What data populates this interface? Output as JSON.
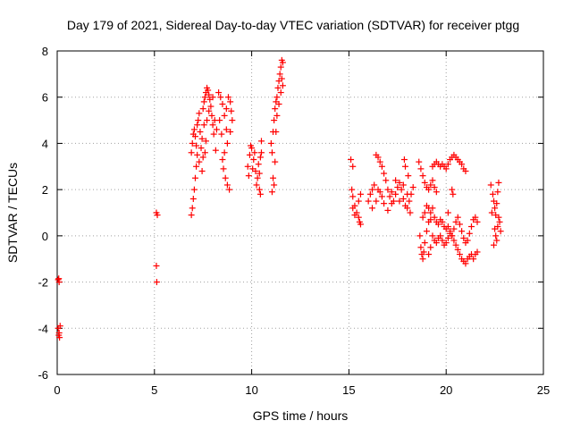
{
  "chart_data": {
    "type": "scatter",
    "title": "Day 179 of 2021, Sidereal Day-to-day VTEC variation (SDTVAR) for receiver ptgg",
    "xlabel": "GPS time / hours",
    "ylabel": "SDTVAR / TECUs",
    "xlim": [
      0,
      25
    ],
    "ylim": [
      -6,
      8
    ],
    "xticks": [
      "0",
      "5",
      "10",
      "15",
      "20",
      "25"
    ],
    "yticks": [
      "-6",
      "-4",
      "-2",
      "0",
      "2",
      "4",
      "6",
      "8"
    ],
    "grid": true,
    "marker": "+",
    "marker_color": "#ff0000",
    "series": [
      {
        "name": "SDTVAR",
        "points": [
          [
            0.05,
            -1.9
          ],
          [
            0.1,
            -2.0
          ],
          [
            0.08,
            -1.85
          ],
          [
            0.05,
            -4.0
          ],
          [
            0.1,
            -4.2
          ],
          [
            0.12,
            -4.4
          ],
          [
            0.08,
            -4.3
          ],
          [
            0.15,
            -3.9
          ],
          [
            5.1,
            1.0
          ],
          [
            5.15,
            0.9
          ],
          [
            5.1,
            -1.3
          ],
          [
            5.12,
            -2.0
          ],
          [
            6.9,
            0.9
          ],
          [
            6.95,
            1.2
          ],
          [
            7.0,
            1.6
          ],
          [
            7.05,
            2.0
          ],
          [
            7.1,
            2.5
          ],
          [
            7.15,
            3.0
          ],
          [
            7.2,
            3.5
          ],
          [
            6.9,
            3.6
          ],
          [
            6.95,
            4.0
          ],
          [
            7.0,
            4.4
          ],
          [
            7.05,
            4.6
          ],
          [
            7.1,
            4.3
          ],
          [
            7.15,
            3.9
          ],
          [
            7.2,
            4.8
          ],
          [
            7.25,
            5.0
          ],
          [
            7.3,
            5.3
          ],
          [
            7.35,
            4.5
          ],
          [
            7.3,
            3.2
          ],
          [
            7.4,
            3.8
          ],
          [
            7.45,
            4.2
          ],
          [
            7.5,
            5.5
          ],
          [
            7.55,
            5.8
          ],
          [
            7.6,
            6.0
          ],
          [
            7.65,
            6.2
          ],
          [
            7.7,
            6.4
          ],
          [
            7.75,
            6.3
          ],
          [
            7.8,
            6.1
          ],
          [
            7.85,
            5.9
          ],
          [
            7.9,
            5.6
          ],
          [
            7.95,
            5.2
          ],
          [
            8.0,
            4.8
          ],
          [
            8.05,
            4.4
          ],
          [
            7.55,
            4.8
          ],
          [
            7.6,
            3.6
          ],
          [
            7.65,
            4.1
          ],
          [
            7.7,
            5.0
          ],
          [
            7.8,
            5.4
          ],
          [
            8.0,
            6.0
          ],
          [
            8.1,
            5.0
          ],
          [
            8.15,
            3.7
          ],
          [
            8.2,
            4.6
          ],
          [
            7.5,
            3.4
          ],
          [
            7.45,
            2.8
          ],
          [
            8.3,
            6.2
          ],
          [
            8.4,
            6.0
          ],
          [
            8.5,
            5.7
          ],
          [
            8.6,
            5.2
          ],
          [
            8.7,
            4.6
          ],
          [
            8.75,
            4.0
          ],
          [
            8.6,
            3.6
          ],
          [
            8.5,
            3.3
          ],
          [
            8.55,
            2.9
          ],
          [
            8.65,
            2.5
          ],
          [
            8.75,
            2.2
          ],
          [
            8.85,
            2.0
          ],
          [
            8.9,
            5.8
          ],
          [
            8.95,
            5.4
          ],
          [
            9.0,
            5.0
          ],
          [
            8.8,
            6.0
          ],
          [
            8.45,
            4.4
          ],
          [
            8.35,
            5.0
          ],
          [
            8.7,
            5.5
          ],
          [
            8.9,
            4.5
          ],
          [
            9.8,
            3.0
          ],
          [
            9.9,
            3.5
          ],
          [
            10.0,
            3.8
          ],
          [
            10.1,
            3.3
          ],
          [
            10.2,
            2.8
          ],
          [
            10.3,
            2.5
          ],
          [
            10.4,
            2.0
          ],
          [
            10.45,
            1.8
          ],
          [
            10.5,
            3.6
          ],
          [
            10.5,
            4.1
          ],
          [
            9.85,
            2.6
          ],
          [
            9.95,
            3.9
          ],
          [
            10.05,
            2.9
          ],
          [
            10.15,
            3.6
          ],
          [
            10.25,
            2.2
          ],
          [
            10.35,
            3.1
          ],
          [
            10.4,
            2.7
          ],
          [
            10.45,
            3.4
          ],
          [
            11.0,
            4.0
          ],
          [
            11.05,
            3.6
          ],
          [
            11.1,
            4.5
          ],
          [
            11.15,
            5.0
          ],
          [
            11.2,
            5.5
          ],
          [
            11.25,
            5.8
          ],
          [
            11.3,
            6.0
          ],
          [
            11.35,
            6.4
          ],
          [
            11.4,
            6.7
          ],
          [
            11.45,
            7.0
          ],
          [
            11.5,
            7.3
          ],
          [
            11.55,
            7.6
          ],
          [
            11.6,
            7.5
          ],
          [
            11.1,
            2.5
          ],
          [
            11.15,
            2.2
          ],
          [
            11.2,
            3.2
          ],
          [
            11.05,
            1.9
          ],
          [
            11.25,
            4.5
          ],
          [
            11.3,
            5.2
          ],
          [
            11.4,
            5.7
          ],
          [
            11.5,
            6.2
          ],
          [
            11.55,
            6.8
          ],
          [
            11.6,
            6.5
          ],
          [
            15.1,
            3.3
          ],
          [
            15.2,
            3.0
          ],
          [
            15.15,
            2.0
          ],
          [
            15.2,
            1.7
          ],
          [
            15.3,
            1.3
          ],
          [
            15.4,
            1.0
          ],
          [
            15.5,
            0.8
          ],
          [
            15.55,
            0.6
          ],
          [
            15.6,
            0.5
          ],
          [
            15.5,
            1.5
          ],
          [
            15.6,
            1.8
          ],
          [
            15.2,
            1.2
          ],
          [
            15.3,
            0.9
          ],
          [
            16.0,
            1.5
          ],
          [
            16.1,
            1.8
          ],
          [
            16.2,
            2.0
          ],
          [
            16.3,
            2.2
          ],
          [
            16.4,
            3.5
          ],
          [
            16.5,
            3.4
          ],
          [
            16.6,
            3.2
          ],
          [
            16.7,
            3.0
          ],
          [
            16.8,
            2.7
          ],
          [
            16.9,
            2.4
          ],
          [
            17.0,
            2.0
          ],
          [
            17.1,
            1.7
          ],
          [
            17.2,
            1.4
          ],
          [
            17.3,
            1.5
          ],
          [
            17.4,
            1.8
          ],
          [
            17.5,
            2.1
          ],
          [
            17.6,
            2.3
          ],
          [
            17.7,
            2.0
          ],
          [
            17.8,
            1.6
          ],
          [
            17.9,
            1.3
          ],
          [
            18.0,
            1.2
          ],
          [
            18.1,
            1.5
          ],
          [
            18.2,
            1.8
          ],
          [
            18.3,
            2.1
          ],
          [
            16.2,
            1.2
          ],
          [
            16.4,
            1.5
          ],
          [
            16.6,
            1.9
          ],
          [
            16.8,
            1.4
          ],
          [
            17.0,
            1.1
          ],
          [
            17.2,
            1.9
          ],
          [
            17.4,
            2.4
          ],
          [
            17.6,
            1.5
          ],
          [
            17.8,
            2.2
          ],
          [
            18.0,
            1.8
          ],
          [
            17.9,
            3.0
          ],
          [
            17.85,
            3.3
          ],
          [
            18.05,
            2.6
          ],
          [
            18.15,
            1.0
          ],
          [
            16.7,
            1.7
          ],
          [
            16.5,
            2.0
          ],
          [
            18.6,
            3.2
          ],
          [
            18.7,
            2.9
          ],
          [
            18.8,
            2.6
          ],
          [
            18.9,
            2.3
          ],
          [
            19.0,
            2.1
          ],
          [
            19.1,
            2.0
          ],
          [
            19.2,
            2.2
          ],
          [
            19.3,
            2.4
          ],
          [
            19.4,
            2.1
          ],
          [
            19.5,
            1.9
          ],
          [
            18.65,
            0.0
          ],
          [
            18.7,
            -0.5
          ],
          [
            18.75,
            -0.8
          ],
          [
            18.8,
            -1.0
          ],
          [
            18.85,
            -0.7
          ],
          [
            18.9,
            -0.3
          ],
          [
            19.0,
            0.2
          ],
          [
            19.1,
            0.6
          ],
          [
            19.2,
            1.0
          ],
          [
            19.3,
            1.2
          ],
          [
            18.8,
            0.8
          ],
          [
            18.9,
            1.0
          ],
          [
            19.0,
            1.3
          ],
          [
            19.1,
            1.2
          ],
          [
            19.2,
            0.7
          ],
          [
            19.3,
            3.0
          ],
          [
            19.4,
            3.1
          ],
          [
            19.5,
            3.2
          ],
          [
            19.6,
            3.1
          ],
          [
            19.7,
            3.0
          ],
          [
            19.8,
            3.1
          ],
          [
            19.9,
            3.0
          ],
          [
            20.0,
            2.9
          ],
          [
            20.1,
            3.1
          ],
          [
            20.2,
            3.3
          ],
          [
            20.3,
            3.4
          ],
          [
            20.4,
            3.5
          ],
          [
            20.5,
            3.4
          ],
          [
            20.6,
            3.3
          ],
          [
            20.7,
            3.2
          ],
          [
            20.8,
            3.1
          ],
          [
            20.9,
            2.9
          ],
          [
            21.0,
            2.8
          ],
          [
            19.4,
            0.8
          ],
          [
            19.5,
            0.6
          ],
          [
            19.6,
            0.5
          ],
          [
            19.7,
            0.7
          ],
          [
            19.8,
            0.6
          ],
          [
            19.9,
            0.4
          ],
          [
            20.0,
            0.3
          ],
          [
            20.1,
            0.4
          ],
          [
            20.2,
            0.2
          ],
          [
            20.3,
            0.0
          ],
          [
            20.4,
            -0.2
          ],
          [
            20.5,
            -0.4
          ],
          [
            20.6,
            -0.6
          ],
          [
            20.7,
            -0.8
          ],
          [
            20.8,
            -1.0
          ],
          [
            20.9,
            -1.1
          ],
          [
            21.0,
            -1.2
          ],
          [
            21.1,
            -1.0
          ],
          [
            21.2,
            -0.9
          ],
          [
            21.3,
            -0.8
          ],
          [
            21.4,
            -1.0
          ],
          [
            21.5,
            -0.8
          ],
          [
            21.6,
            -0.7
          ],
          [
            19.3,
            0.0
          ],
          [
            19.4,
            -0.2
          ],
          [
            19.5,
            -0.3
          ],
          [
            19.6,
            -0.1
          ],
          [
            19.7,
            0.0
          ],
          [
            19.8,
            -0.2
          ],
          [
            19.9,
            -0.4
          ],
          [
            20.0,
            -0.3
          ],
          [
            20.1,
            -0.1
          ],
          [
            20.2,
            0.1
          ],
          [
            20.3,
            0.0
          ],
          [
            20.4,
            0.3
          ],
          [
            20.5,
            0.6
          ],
          [
            20.6,
            0.8
          ],
          [
            20.7,
            0.5
          ],
          [
            20.8,
            0.2
          ],
          [
            20.9,
            -0.1
          ],
          [
            21.0,
            -0.3
          ],
          [
            21.1,
            -0.2
          ],
          [
            21.2,
            0.1
          ],
          [
            21.3,
            0.4
          ],
          [
            21.4,
            0.7
          ],
          [
            21.5,
            0.8
          ],
          [
            21.6,
            0.6
          ],
          [
            20.3,
            2.0
          ],
          [
            20.35,
            1.8
          ],
          [
            20.1,
            1.0
          ],
          [
            19.2,
            -0.5
          ],
          [
            19.1,
            -0.8
          ],
          [
            22.3,
            2.2
          ],
          [
            22.4,
            1.8
          ],
          [
            22.45,
            1.5
          ],
          [
            22.5,
            1.2
          ],
          [
            22.55,
            0.9
          ],
          [
            22.6,
            1.4
          ],
          [
            22.65,
            1.9
          ],
          [
            22.7,
            2.3
          ],
          [
            22.5,
            0.3
          ],
          [
            22.55,
            0.0
          ],
          [
            22.6,
            -0.2
          ],
          [
            22.65,
            0.4
          ],
          [
            22.7,
            0.8
          ],
          [
            22.75,
            0.6
          ],
          [
            22.8,
            0.2
          ],
          [
            22.45,
            -0.4
          ],
          [
            22.35,
            1.0
          ]
        ]
      }
    ]
  }
}
